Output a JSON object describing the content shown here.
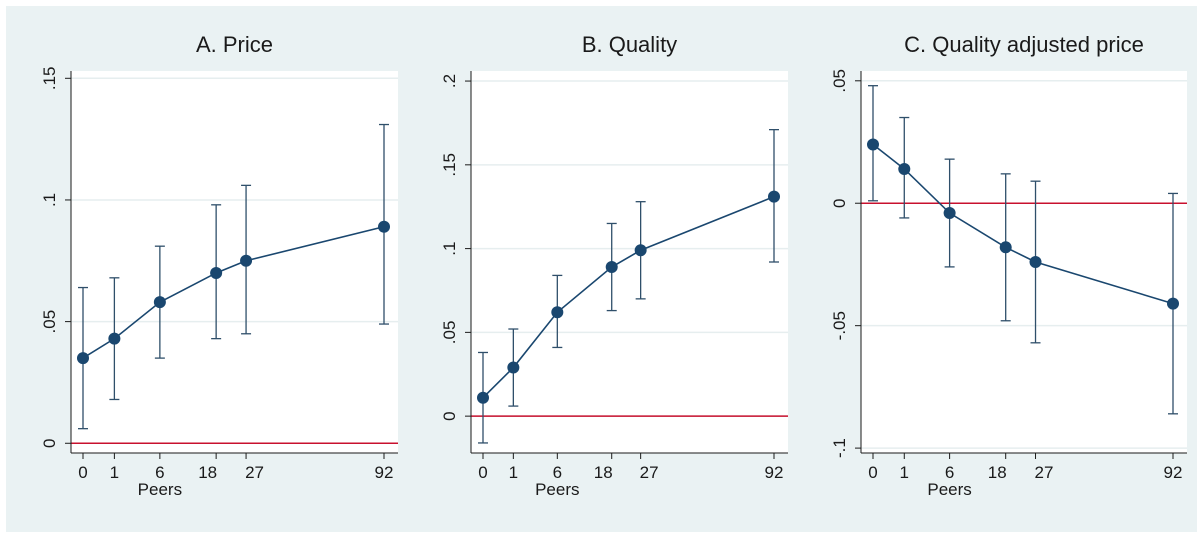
{
  "chart_data": [
    {
      "type": "line",
      "title": "A. Price",
      "xlabel": "Peers",
      "ylabel": "",
      "x": [
        0,
        1,
        6,
        18,
        27,
        92
      ],
      "values": [
        0.035,
        0.043,
        0.058,
        0.07,
        0.075,
        0.089
      ],
      "ci_low": [
        0.006,
        0.018,
        0.035,
        0.043,
        0.045,
        0.049
      ],
      "ci_high": [
        0.064,
        0.068,
        0.081,
        0.098,
        0.106,
        0.131
      ],
      "ylim": [
        -0.004,
        0.153
      ],
      "yticks": [
        0,
        0.05,
        0.1,
        0.15
      ],
      "ytick_labels": [
        "0",
        ".05",
        ".1",
        ".15"
      ],
      "xticks": [
        0,
        1,
        6,
        18,
        27,
        92
      ],
      "xtick_labels": [
        "0",
        "1",
        "6",
        "18",
        "27",
        "92"
      ],
      "reference_line": 0,
      "grid": true,
      "legend": "none"
    },
    {
      "type": "line",
      "title": "B. Quality",
      "xlabel": "Peers",
      "ylabel": "",
      "x": [
        0,
        1,
        6,
        18,
        27,
        92
      ],
      "values": [
        0.011,
        0.029,
        0.062,
        0.089,
        0.099,
        0.131
      ],
      "ci_low": [
        -0.016,
        0.006,
        0.041,
        0.063,
        0.07,
        0.092
      ],
      "ci_high": [
        0.038,
        0.052,
        0.084,
        0.115,
        0.128,
        0.171
      ],
      "ylim": [
        -0.022,
        0.206
      ],
      "yticks": [
        0,
        0.05,
        0.1,
        0.15,
        0.2
      ],
      "ytick_labels": [
        "0",
        ".05",
        ".1",
        ".15",
        ".2"
      ],
      "xticks": [
        0,
        1,
        6,
        18,
        27,
        92
      ],
      "xtick_labels": [
        "0",
        "1",
        "6",
        "18",
        "27",
        "92"
      ],
      "reference_line": 0,
      "grid": true,
      "legend": "none"
    },
    {
      "type": "line",
      "title": "C. Quality adjusted price",
      "xlabel": "Peers",
      "ylabel": "",
      "x": [
        0,
        1,
        6,
        18,
        27,
        92
      ],
      "values": [
        0.024,
        0.014,
        -0.004,
        -0.018,
        -0.024,
        -0.041
      ],
      "ci_low": [
        0.001,
        -0.006,
        -0.026,
        -0.048,
        -0.057,
        -0.086
      ],
      "ci_high": [
        0.048,
        0.035,
        0.018,
        0.012,
        0.009,
        0.004
      ],
      "ylim": [
        -0.102,
        0.054
      ],
      "yticks": [
        -0.1,
        -0.05,
        0,
        0.05
      ],
      "ytick_labels": [
        "-.1",
        "-.05",
        "0",
        ".05"
      ],
      "xticks": [
        0,
        1,
        6,
        18,
        27,
        92
      ],
      "xtick_labels": [
        "0",
        "1",
        "6",
        "18",
        "27",
        "92"
      ],
      "reference_line": 0,
      "grid": true,
      "legend": "none"
    }
  ],
  "colors": {
    "frame": "#eaf2f3",
    "plot": "#ffffff",
    "grid": "#e6eeef",
    "axis": "#1a1a1a",
    "series": "#1a476f",
    "ci": "#2f4f6a",
    "reference": "#c8102e"
  }
}
